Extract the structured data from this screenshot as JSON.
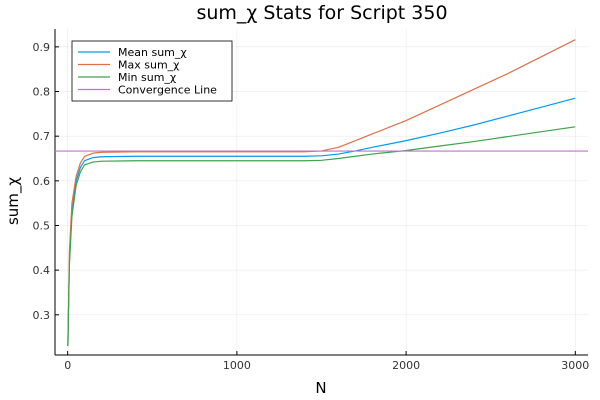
{
  "chart_data": {
    "type": "line",
    "title": "sum_χ Stats for Script 350",
    "xlabel": "N",
    "ylabel": "sum_χ",
    "xlim": [
      -75,
      3075
    ],
    "ylim": [
      0.21,
      0.94
    ],
    "xticks": [
      0,
      1000,
      2000,
      3000
    ],
    "yticks": [
      0.3,
      0.4,
      0.5,
      0.6,
      0.7,
      0.8,
      0.9
    ],
    "grid": true,
    "legend_position": "top-left",
    "series": [
      {
        "name": "Mean sum_χ",
        "color": "#009af9",
        "points": [
          [
            1,
            0.23
          ],
          [
            10,
            0.42
          ],
          [
            25,
            0.53
          ],
          [
            50,
            0.6
          ],
          [
            75,
            0.63
          ],
          [
            100,
            0.645
          ],
          [
            150,
            0.652
          ],
          [
            200,
            0.654
          ],
          [
            400,
            0.655
          ],
          [
            800,
            0.655
          ],
          [
            1200,
            0.655
          ],
          [
            1400,
            0.655
          ],
          [
            1500,
            0.656
          ],
          [
            1600,
            0.66
          ],
          [
            1700,
            0.667
          ],
          [
            1800,
            0.675
          ],
          [
            2000,
            0.69
          ],
          [
            2200,
            0.707
          ],
          [
            2400,
            0.725
          ],
          [
            2600,
            0.745
          ],
          [
            2800,
            0.765
          ],
          [
            3000,
            0.785
          ]
        ]
      },
      {
        "name": "Max sum_χ",
        "color": "#e26f46",
        "points": [
          [
            1,
            0.23
          ],
          [
            10,
            0.44
          ],
          [
            25,
            0.55
          ],
          [
            50,
            0.61
          ],
          [
            75,
            0.64
          ],
          [
            100,
            0.655
          ],
          [
            150,
            0.662
          ],
          [
            200,
            0.664
          ],
          [
            400,
            0.665
          ],
          [
            800,
            0.665
          ],
          [
            1200,
            0.665
          ],
          [
            1400,
            0.665
          ],
          [
            1500,
            0.667
          ],
          [
            1600,
            0.675
          ],
          [
            1700,
            0.69
          ],
          [
            1800,
            0.705
          ],
          [
            2000,
            0.735
          ],
          [
            2200,
            0.77
          ],
          [
            2400,
            0.805
          ],
          [
            2600,
            0.84
          ],
          [
            2800,
            0.878
          ],
          [
            3000,
            0.916
          ]
        ]
      },
      {
        "name": "Min sum_χ",
        "color": "#3da44d",
        "points": [
          [
            1,
            0.23
          ],
          [
            10,
            0.41
          ],
          [
            25,
            0.52
          ],
          [
            50,
            0.59
          ],
          [
            75,
            0.62
          ],
          [
            100,
            0.636
          ],
          [
            150,
            0.642
          ],
          [
            200,
            0.644
          ],
          [
            400,
            0.645
          ],
          [
            800,
            0.645
          ],
          [
            1200,
            0.645
          ],
          [
            1400,
            0.645
          ],
          [
            1500,
            0.646
          ],
          [
            1600,
            0.65
          ],
          [
            1700,
            0.655
          ],
          [
            1800,
            0.66
          ],
          [
            2000,
            0.668
          ],
          [
            2200,
            0.678
          ],
          [
            2400,
            0.688
          ],
          [
            2600,
            0.699
          ],
          [
            2800,
            0.71
          ],
          [
            3000,
            0.721
          ]
        ]
      },
      {
        "name": "Convergence Line",
        "color": "#c271d2",
        "points": [
          [
            -75,
            0.6667
          ],
          [
            3075,
            0.6667
          ]
        ]
      }
    ]
  }
}
